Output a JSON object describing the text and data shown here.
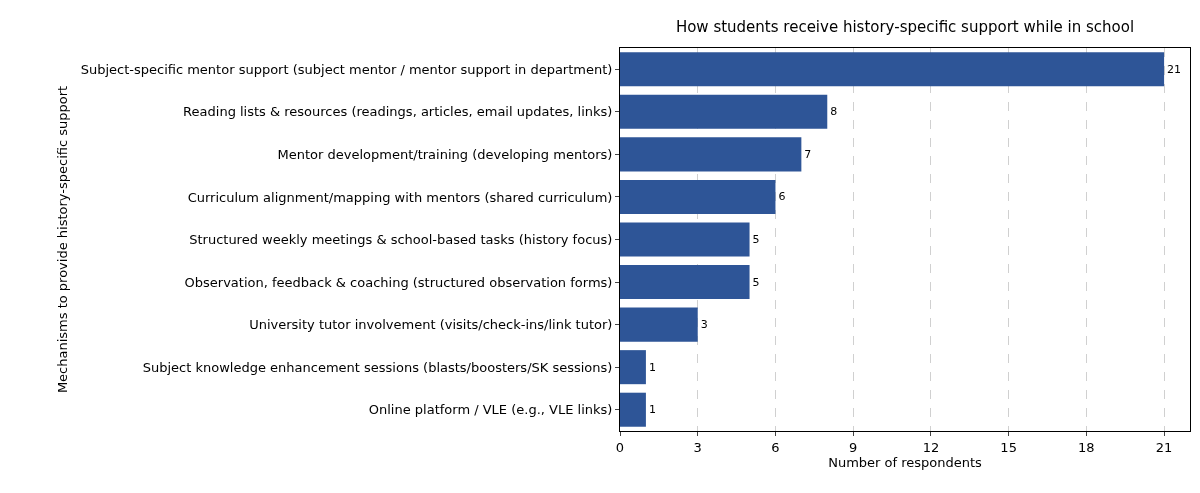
{
  "chart_data": {
    "type": "bar",
    "orientation": "horizontal",
    "title": "How students receive history-specific support while in school",
    "xlabel": "Number of respondents",
    "ylabel": "Mechanisms to provide history-specific support",
    "categories": [
      "Subject-specific mentor support (subject mentor / mentor support in department)",
      "Reading lists & resources (readings, articles, email updates, links)",
      "Mentor development/training (developing mentors)",
      "Curriculum alignment/mapping with mentors (shared curriculum)",
      "Structured weekly meetings & school-based tasks (history focus)",
      "Observation, feedback & coaching (structured observation forms)",
      "University tutor involvement (visits/check-ins/link tutor)",
      "Subject knowledge enhancement sessions (blasts/boosters/SK sessions)",
      "Online platform / VLE (e.g., VLE links)"
    ],
    "values": [
      21,
      8,
      7,
      6,
      5,
      5,
      3,
      1,
      1
    ],
    "color": "#2e5597",
    "xlim": [
      0,
      22
    ],
    "xticks": [
      0,
      3,
      6,
      9,
      12,
      15,
      18,
      21
    ],
    "grid": "x",
    "data_labels": true
  }
}
